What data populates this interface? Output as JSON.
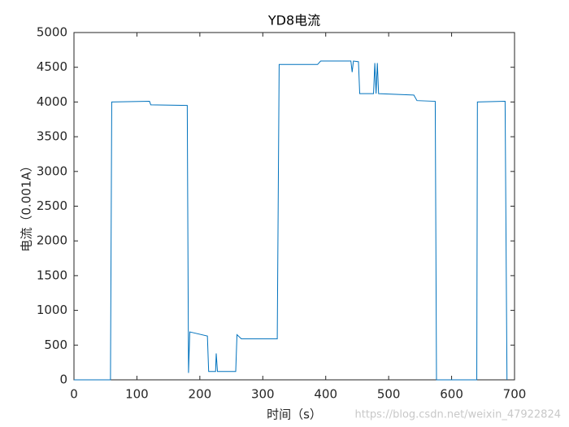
{
  "chart_data": {
    "type": "line",
    "title": "YD8电流",
    "xlabel": "时间（s）",
    "ylabel": "电流（0.001A）",
    "x": [
      0,
      58,
      60,
      120,
      122,
      180,
      182,
      184,
      212,
      214,
      225,
      226,
      228,
      257,
      259,
      266,
      323,
      326,
      387,
      392,
      440,
      442,
      444,
      452,
      454,
      476,
      478,
      480,
      482,
      484,
      540,
      545,
      574,
      576,
      640,
      641,
      685,
      688
    ],
    "series": [
      {
        "color": "#0072bd",
        "values": [
          0,
          0,
          4000,
          4010,
          3960,
          3950,
          100,
          690,
          630,
          120,
          120,
          380,
          120,
          120,
          650,
          590,
          590,
          4540,
          4540,
          4590,
          4590,
          4430,
          4590,
          4580,
          4120,
          4120,
          4560,
          4120,
          4560,
          4120,
          4100,
          4020,
          4010,
          0,
          0,
          4000,
          4010,
          0
        ]
      }
    ],
    "xlim": [
      0,
      700
    ],
    "xticks": [
      0,
      100,
      200,
      300,
      400,
      500,
      600,
      700
    ],
    "ylim": [
      0,
      5000
    ],
    "yticks": [
      0,
      500,
      1000,
      1500,
      2000,
      2500,
      3000,
      3500,
      4000,
      4500,
      5000
    ],
    "grid": false,
    "watermark": "https://blog.csdn.net/weixin_47922824"
  }
}
